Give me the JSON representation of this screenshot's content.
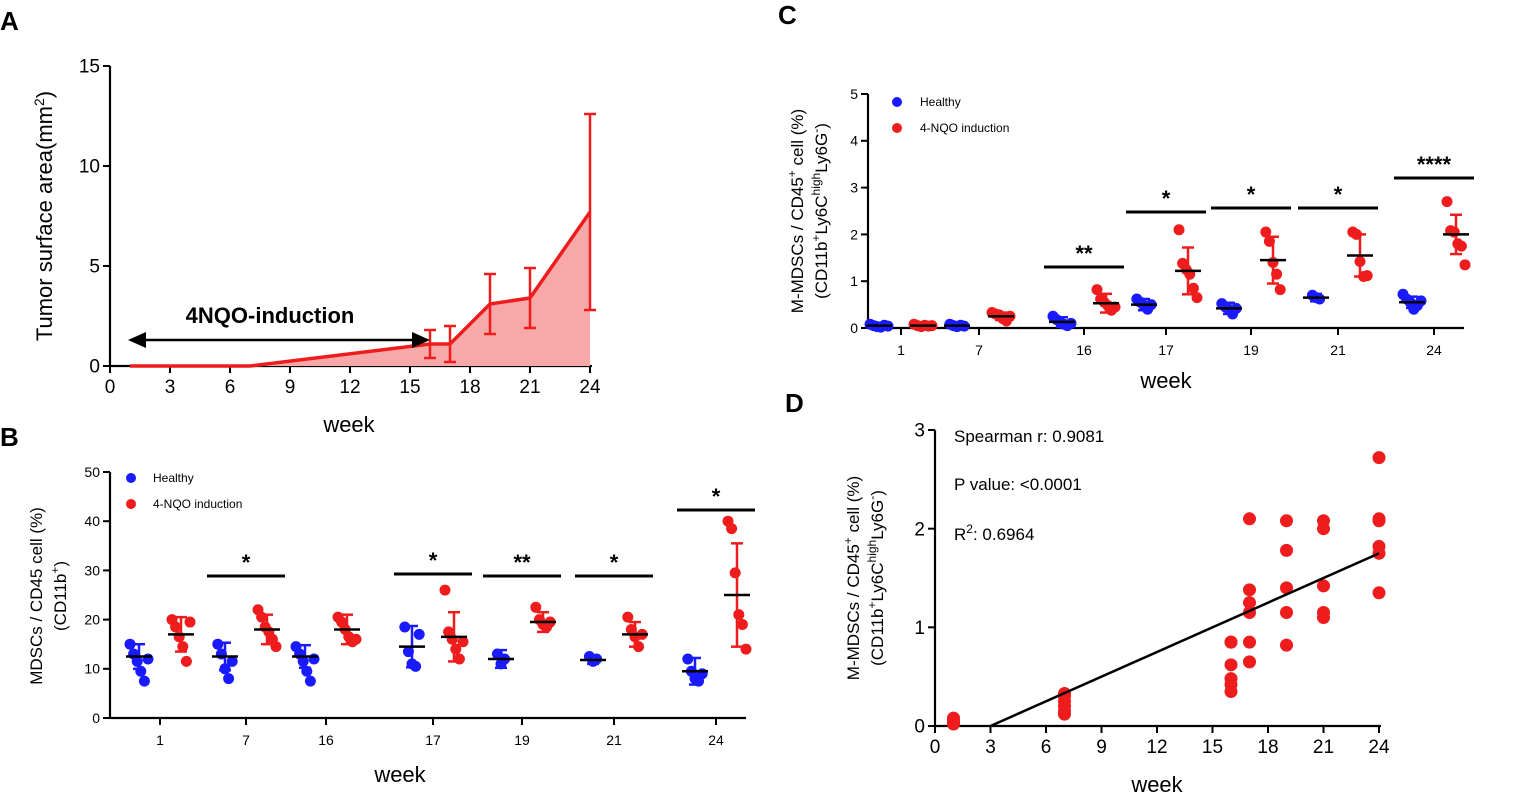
{
  "colors": {
    "healthy": "#1a1aff",
    "nqo": "#ee1c1c",
    "area_fill": "#f7a8a8",
    "black": "#000000"
  },
  "panels": {
    "a": "A",
    "b": "B",
    "c": "C",
    "d": "D"
  },
  "chart_data": [
    {
      "panel": "A",
      "type": "area",
      "ylabel": "Tumor surface area(mm",
      "ylabel_sup": "2",
      "ylabel_close": ")",
      "xlabel": "week",
      "xlim": [
        0,
        24
      ],
      "ylim": [
        0,
        15
      ],
      "xticks": [
        "0",
        "3",
        "6",
        "9",
        "12",
        "15",
        "18",
        "21",
        "24"
      ],
      "yticks": [
        "0",
        "5",
        "10",
        "15"
      ],
      "x": [
        1,
        7,
        16,
        17,
        19,
        21,
        24
      ],
      "y": [
        0,
        0,
        1.1,
        1.1,
        3.1,
        3.4,
        7.7
      ],
      "sd": [
        0,
        0,
        0.7,
        0.9,
        1.5,
        1.5,
        4.9
      ],
      "annotation": "4NQO-induction",
      "annotation_range": [
        1,
        15.8
      ]
    },
    {
      "panel": "B",
      "type": "scatter",
      "ylabel": "MDSCs / CD45 cell (%)",
      "ylabel2": "(CD11b",
      "ylabel2_sup": "+",
      "ylabel2_close": ")",
      "xlabel": "week",
      "ylim": [
        0,
        50
      ],
      "yticks": [
        "0",
        "10",
        "20",
        "30",
        "40",
        "50"
      ],
      "categories": [
        "1",
        "7",
        "16",
        "17",
        "19",
        "21",
        "24"
      ],
      "legend": [
        "Healthy",
        "4-NQO induction"
      ],
      "significance": [
        "",
        "*",
        "",
        "*",
        "**",
        "*",
        "*"
      ],
      "series": [
        {
          "name": "Healthy",
          "means": [
            12.5,
            12.5,
            12.5,
            14.5,
            12,
            11.8,
            9.5
          ],
          "sd": [
            2.5,
            2.8,
            2.3,
            4.2,
            1.8,
            0.8,
            2.7
          ],
          "points": [
            [
              15,
              13,
              11.5,
              9.5,
              7.5,
              12
            ],
            [
              15,
              13,
              10,
              8,
              11.5
            ],
            [
              14.5,
              13,
              11.5,
              9.5,
              7.5,
              12
            ],
            [
              18.5,
              13.5,
              11,
              10.5,
              17
            ],
            [
              13,
              11,
              12
            ],
            [
              12.5,
              11.5,
              12
            ],
            [
              12,
              9.5,
              8,
              7.5,
              9
            ]
          ]
        },
        {
          "name": "4-NQO induction",
          "means": [
            17,
            18,
            18,
            16.5,
            19.5,
            17,
            25
          ],
          "sd": [
            3.5,
            3,
            3,
            5,
            2,
            2.5,
            10.5
          ],
          "points": [
            [
              20,
              18.5,
              16.5,
              14.5,
              11.5,
              19.5
            ],
            [
              22,
              20.5,
              18.5,
              17.5,
              16,
              14.5
            ],
            [
              20.5,
              19.5,
              18,
              16.5,
              15.5,
              16
            ],
            [
              26,
              17.5,
              16,
              14,
              12,
              15.5
            ],
            [
              22.5,
              20,
              19,
              18.5,
              19.5
            ],
            [
              20.5,
              18,
              16.5,
              14.5,
              17
            ],
            [
              40,
              38.5,
              29.5,
              21,
              19,
              14
            ]
          ]
        }
      ]
    },
    {
      "panel": "C",
      "type": "scatter",
      "ylabel": "M-MDSCs / CD45",
      "ylabel_sup": "+",
      "ylabel_tail": " cell (%)",
      "ylabel2_a": "(CD11b",
      "ylabel2_sup1": "+",
      "ylabel2_b": "Ly6C",
      "ylabel2_sup2": "high",
      "ylabel2_c": "Ly6G",
      "ylabel2_sup3": "-",
      "ylabel2_close": ")",
      "xlabel": "week",
      "ylim": [
        0,
        5
      ],
      "yticks": [
        "0",
        "1",
        "2",
        "3",
        "4",
        "5"
      ],
      "categories": [
        "1",
        "7",
        "16",
        "17",
        "19",
        "21",
        "24"
      ],
      "legend": [
        "Healthy",
        "4-NQO induction"
      ],
      "significance": [
        "",
        "",
        "**",
        "*",
        "*",
        "*",
        "****"
      ],
      "series": [
        {
          "name": "Healthy",
          "means": [
            0.05,
            0.05,
            0.13,
            0.5,
            0.42,
            0.65,
            0.55
          ],
          "sd": [
            0.03,
            0.03,
            0.1,
            0.12,
            0.12,
            0.08,
            0.12
          ],
          "points": [
            [
              0.08,
              0.05,
              0.03,
              0.02,
              0.06,
              0.04
            ],
            [
              0.08,
              0.05,
              0.03,
              0.06,
              0.04
            ],
            [
              0.25,
              0.18,
              0.12,
              0.08,
              0.05,
              0.1
            ],
            [
              0.62,
              0.55,
              0.48,
              0.4,
              0.5
            ],
            [
              0.52,
              0.45,
              0.4,
              0.3,
              0.42
            ],
            [
              0.7,
              0.65,
              0.62
            ],
            [
              0.72,
              0.62,
              0.55,
              0.4,
              0.48,
              0.58
            ]
          ]
        },
        {
          "name": "4-NQO induction",
          "means": [
            0.05,
            0.25,
            0.53,
            1.22,
            1.45,
            1.55,
            2.0
          ],
          "sd": [
            0.03,
            0.08,
            0.2,
            0.5,
            0.5,
            0.45,
            0.42
          ],
          "points": [
            [
              0.08,
              0.05,
              0.03,
              0.06,
              0.04,
              0.05
            ],
            [
              0.33,
              0.3,
              0.28,
              0.2,
              0.15,
              0.25
            ],
            [
              0.82,
              0.62,
              0.55,
              0.48,
              0.38,
              0.45
            ],
            [
              2.1,
              1.38,
              1.25,
              1.15,
              0.85,
              0.65
            ],
            [
              2.05,
              1.85,
              1.4,
              1.15,
              0.82
            ],
            [
              2.05,
              2.0,
              1.42,
              1.1,
              1.12
            ],
            [
              2.7,
              2.08,
              2.05,
              1.8,
              1.75,
              1.35
            ]
          ]
        }
      ]
    },
    {
      "panel": "D",
      "type": "scatter",
      "ylabel": "M-MDSCs / CD45",
      "ylabel_sup": "+",
      "ylabel_tail": " cell (%)",
      "ylabel2_a": "(CD11b",
      "ylabel2_sup1": "+",
      "ylabel2_b": "Ly6C",
      "ylabel2_sup2": "high",
      "ylabel2_c": "Ly6G",
      "ylabel2_sup3": "-",
      "ylabel2_close": ")",
      "xlabel": "week",
      "xlim": [
        0,
        24
      ],
      "ylim": [
        0,
        3
      ],
      "xticks": [
        "0",
        "3",
        "6",
        "9",
        "12",
        "15",
        "18",
        "21",
        "24"
      ],
      "yticks": [
        "0",
        "1",
        "2",
        "3"
      ],
      "x": [
        1,
        1,
        1,
        1,
        1,
        7,
        7,
        7,
        7,
        7,
        7,
        16,
        16,
        16,
        16,
        16,
        16,
        17,
        17,
        17,
        17,
        17,
        17,
        19,
        19,
        19,
        19,
        19,
        21,
        21,
        21,
        21,
        21,
        24,
        24,
        24,
        24,
        24,
        24
      ],
      "y": [
        0.08,
        0.05,
        0.03,
        0.02,
        0.06,
        0.33,
        0.3,
        0.25,
        0.2,
        0.15,
        0.12,
        0.85,
        0.62,
        0.48,
        0.42,
        0.35,
        0.85,
        2.1,
        1.38,
        1.25,
        1.15,
        0.85,
        0.65,
        2.08,
        1.78,
        1.4,
        1.15,
        0.82,
        2.08,
        2.0,
        1.42,
        1.15,
        1.1,
        2.72,
        2.1,
        2.08,
        1.82,
        1.75,
        1.35
      ],
      "fit_line": {
        "x": [
          3,
          24
        ],
        "y": [
          0,
          1.75
        ]
      },
      "stats": [
        "Spearman r: 0.9081",
        "P value: <0.0001"
      ],
      "r2_label": "R",
      "r2_sup": "2",
      "r2_value": ": 0.6964"
    }
  ]
}
